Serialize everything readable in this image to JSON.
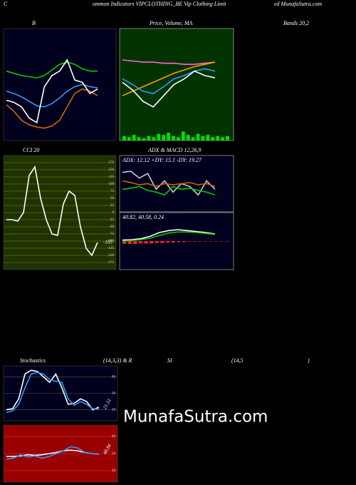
{
  "header": {
    "c": "C",
    "indicators": "ommon Indicators VIPCLOTHING_BE Vip Clothing Limit",
    "site": "ed MunafaSutra.com"
  },
  "labels": {
    "bands": "Bands 20,2",
    "stoch": [
      "Stochastics",
      "(14,3,3) & R",
      "SI",
      "(14,5",
      ")"
    ],
    "watermark": "MunafaSutra.com"
  },
  "chart_data": [
    {
      "type": "line",
      "title": "B",
      "ylim": [
        0,
        100
      ],
      "series": [
        {
          "color": "#00cc00",
          "values": [
            62,
            60,
            58,
            57,
            56,
            58,
            63,
            68,
            70,
            68,
            64,
            62,
            62
          ]
        },
        {
          "color": "#3399ff",
          "values": [
            44,
            42,
            39,
            35,
            31,
            30,
            33,
            38,
            44,
            48,
            50,
            48,
            47
          ]
        },
        {
          "color": "#cc6600",
          "values": [
            32,
            26,
            18,
            14,
            12,
            11,
            13,
            18,
            30,
            42,
            46,
            44,
            40
          ]
        },
        {
          "color": "#ffffff",
          "values": [
            36,
            34,
            30,
            20,
            16,
            48,
            58,
            62,
            72,
            54,
            52,
            42,
            46
          ]
        }
      ]
    },
    {
      "type": "line",
      "title": "Price, Volume, MA",
      "ylim": [
        0,
        100
      ],
      "series": [
        {
          "color": "#ff66cc",
          "values": [
            72,
            71,
            70,
            70,
            69,
            69,
            68,
            68,
            69,
            70
          ]
        },
        {
          "color": "#ff9900",
          "values": [
            40,
            44,
            48,
            52,
            56,
            60,
            63,
            66,
            68,
            70
          ]
        },
        {
          "color": "#3399ff",
          "values": [
            55,
            50,
            44,
            42,
            48,
            55,
            58,
            62,
            64,
            62
          ]
        },
        {
          "color": "#ffffff",
          "values": [
            52,
            45,
            35,
            30,
            40,
            50,
            55,
            62,
            58,
            56
          ]
        },
        {
          "color": "#00dd00",
          "style": "bars",
          "values": [
            4,
            3,
            5,
            3,
            2,
            4,
            3,
            6,
            5,
            7,
            4,
            3,
            8,
            5,
            3,
            6,
            4,
            5,
            3,
            4,
            3,
            4
          ]
        }
      ]
    },
    {
      "type": "line",
      "title": "CCI 20",
      "ylim": [
        -200,
        200
      ],
      "grid": true,
      "yticks": [
        175,
        150,
        125,
        100,
        75,
        50,
        25,
        0,
        -25,
        -50,
        -75,
        -100,
        -125,
        -150,
        -175
      ],
      "series": [
        {
          "color": "#ffffff",
          "end_label": true,
          "values": [
            -25,
            -25,
            -30,
            0,
            130,
            160,
            50,
            -25,
            -75,
            -80,
            30,
            75,
            60,
            -50,
            -125,
            -150,
            -105
          ]
        }
      ]
    },
    {
      "type": "line",
      "title": "ADX  & MACD 12,26,9",
      "text": "ADX: 12.12  +DY: 15.1  -DY: 19.27",
      "ylim": [
        0,
        100
      ],
      "series": [
        {
          "color": "#cccccc",
          "values": [
            70,
            72,
            60,
            68,
            40,
            55,
            35,
            50,
            45,
            30,
            55,
            40
          ]
        },
        {
          "color": "#00cc00",
          "values": [
            40,
            42,
            45,
            38,
            35,
            30,
            45,
            40,
            42,
            38,
            35,
            30
          ]
        },
        {
          "color": "#cc6600",
          "values": [
            55,
            52,
            48,
            50,
            45,
            50,
            48,
            50,
            52,
            48,
            50,
            45
          ]
        }
      ]
    },
    {
      "type": "line",
      "text": "40.82,  40.58,  0.24",
      "ylim": [
        -60,
        60
      ],
      "series": [
        {
          "color": "#ff2222",
          "style": "bars",
          "values": [
            -6,
            -6,
            -6,
            -5,
            -5,
            -5,
            -4,
            -4,
            -3,
            -3,
            -2,
            -2,
            -1,
            -1,
            -1,
            0,
            0,
            0,
            0,
            0
          ]
        },
        {
          "color": "#ffffff",
          "values": [
            2,
            3,
            5,
            10,
            18,
            22,
            24,
            22,
            20,
            18,
            15
          ]
        },
        {
          "color": "#00cc00",
          "values": [
            0,
            1,
            3,
            6,
            12,
            17,
            19,
            19,
            18,
            16,
            14
          ]
        }
      ]
    },
    {
      "type": "line",
      "ylim": [
        0,
        100
      ],
      "grid": true,
      "yticks": [
        80,
        50,
        20
      ],
      "series": [
        {
          "color": "#ffffff",
          "values": [
            20,
            22,
            40,
            85,
            92,
            90,
            80,
            70,
            85,
            60,
            30,
            32,
            40,
            35,
            20,
            25
          ]
        },
        {
          "color": "#3399ff",
          "end_label": true,
          "values": [
            15,
            18,
            30,
            60,
            85,
            88,
            85,
            75,
            72,
            70,
            40,
            28,
            35,
            30,
            22,
            21.51
          ]
        }
      ]
    },
    {
      "type": "line",
      "ylim": [
        0,
        100
      ],
      "grid": true,
      "yticks": [
        80,
        50,
        20
      ],
      "series": [
        {
          "color": "#ffffff",
          "values": [
            45,
            45,
            46,
            48,
            47,
            48,
            50,
            52,
            55,
            56,
            55,
            52,
            50,
            49
          ]
        },
        {
          "color": "#3399ff",
          "end_label": true,
          "values": [
            40,
            42,
            48,
            44,
            46,
            42,
            45,
            50,
            55,
            62,
            60,
            52,
            50,
            48.84
          ]
        }
      ]
    }
  ]
}
